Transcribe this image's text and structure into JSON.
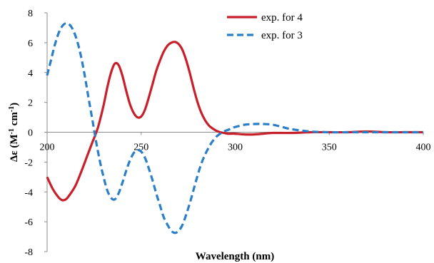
{
  "chart_data": {
    "type": "line",
    "title": "",
    "xlabel": "Wavelength (nm)",
    "ylabel": {
      "prefix": "Δε (M",
      "sup1": "-1",
      "mid": " cm",
      "sup2": "-1",
      "suffix": ")"
    },
    "xlim": [
      200,
      400
    ],
    "ylim": [
      -8,
      8
    ],
    "xticks": [
      200,
      250,
      300,
      350,
      400
    ],
    "yticks": [
      -8,
      -6,
      -4,
      -2,
      0,
      2,
      4,
      6,
      8
    ],
    "grid": false,
    "legend_position": "top-right",
    "series": [
      {
        "name": "exp. for 4",
        "color": "#c8202a",
        "style": "solid",
        "x": [
          200,
          203,
          206,
          208,
          210,
          212,
          215,
          218,
          221,
          224,
          227,
          230,
          232,
          234,
          236,
          238,
          240,
          242,
          244,
          246,
          248,
          250,
          252,
          254,
          256,
          258,
          260,
          262,
          264,
          266,
          268,
          270,
          272,
          274,
          276,
          278,
          280,
          282,
          284,
          286,
          288,
          290,
          292,
          294,
          296,
          298,
          300,
          305,
          310,
          315,
          320,
          330,
          340,
          350,
          360,
          370,
          380,
          390,
          400
        ],
        "y": [
          -3.0,
          -3.8,
          -4.35,
          -4.55,
          -4.5,
          -4.2,
          -3.6,
          -2.7,
          -1.7,
          -0.7,
          0.3,
          1.8,
          3.0,
          4.0,
          4.6,
          4.5,
          3.8,
          2.8,
          1.9,
          1.3,
          1.0,
          1.05,
          1.5,
          2.3,
          3.2,
          4.1,
          4.8,
          5.4,
          5.8,
          6.0,
          6.05,
          5.9,
          5.5,
          4.8,
          3.9,
          2.9,
          2.0,
          1.3,
          0.8,
          0.45,
          0.25,
          0.1,
          0.0,
          -0.05,
          -0.1,
          -0.1,
          -0.1,
          -0.15,
          -0.15,
          -0.1,
          -0.05,
          -0.05,
          0.0,
          0.0,
          0.0,
          0.05,
          0.0,
          0.0,
          0.0
        ]
      },
      {
        "name": "exp. for 3",
        "color": "#2b7fc8",
        "style": "dashed",
        "x": [
          200,
          202,
          204,
          206,
          208,
          210,
          212,
          214,
          216,
          218,
          220,
          222,
          224,
          226,
          228,
          230,
          232,
          234,
          236,
          238,
          240,
          242,
          244,
          246,
          248,
          250,
          252,
          254,
          256,
          258,
          260,
          262,
          264,
          266,
          268,
          270,
          272,
          274,
          276,
          278,
          280,
          282,
          284,
          286,
          288,
          290,
          292,
          294,
          296,
          298,
          300,
          305,
          310,
          315,
          320,
          325,
          330,
          340,
          350,
          360,
          370,
          380,
          390,
          400
        ],
        "y": [
          3.8,
          4.8,
          5.8,
          6.6,
          7.1,
          7.3,
          7.2,
          6.8,
          6.1,
          5.1,
          3.8,
          2.3,
          0.9,
          -0.6,
          -1.9,
          -3.0,
          -3.9,
          -4.4,
          -4.5,
          -4.1,
          -3.4,
          -2.6,
          -1.9,
          -1.4,
          -1.2,
          -1.3,
          -1.7,
          -2.4,
          -3.2,
          -4.1,
          -4.9,
          -5.7,
          -6.2,
          -6.6,
          -6.75,
          -6.6,
          -6.2,
          -5.5,
          -4.7,
          -3.8,
          -2.9,
          -2.1,
          -1.5,
          -1.0,
          -0.6,
          -0.3,
          -0.1,
          0.05,
          0.15,
          0.25,
          0.35,
          0.5,
          0.55,
          0.55,
          0.5,
          0.35,
          0.2,
          0.05,
          0.0,
          0.0,
          0.0,
          0.0,
          0.0,
          0.0
        ]
      }
    ]
  }
}
